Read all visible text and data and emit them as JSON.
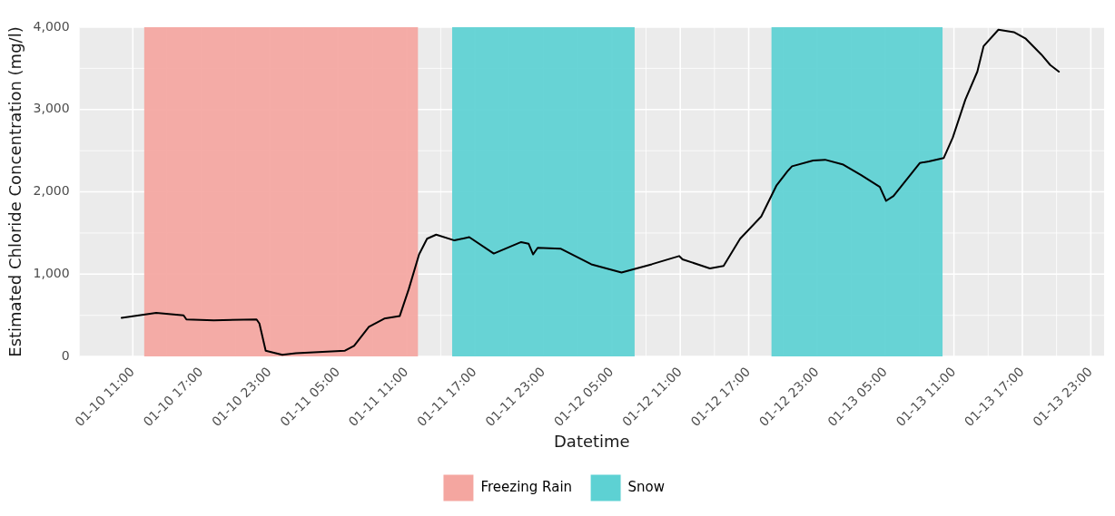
{
  "chart_data": {
    "type": "line",
    "xlabel": "Datetime",
    "ylabel": "Estimated Chloride Concentration (mg/l)",
    "x": [
      "--01-10T10:01",
      "--01-10T13:03",
      "--01-10T15:27",
      "--01-10T15:42",
      "--01-10T18:06",
      "--01-10T21:51",
      "--01-10T22:06",
      "--01-10T22:39",
      "--01-11T00:06",
      "--01-11T01:18",
      "--01-11T05:36",
      "--01-11T06:24",
      "--01-11T07:42",
      "--01-11T09:03",
      "--01-11T10:24",
      "--01-11T11:12",
      "--01-11T12:06",
      "--01-11T12:48",
      "--01-11T13:36",
      "--01-11T15:12",
      "--01-11T16:30",
      "--01-11T18:39",
      "--01-11T21:03",
      "--01-11T21:42",
      "--01-11T22:06",
      "--01-11T22:30",
      "--01-12T00:30",
      "--01-12T03:12",
      "--01-12T05:51",
      "--01-12T08:30",
      "--01-12T10:54",
      "--01-12T11:12",
      "--01-12T13:36",
      "--01-12T14:48",
      "--01-12T16:15",
      "--01-12T18:06",
      "--01-12T19:27",
      "--01-12T20:24",
      "--01-12T20:48",
      "--01-12T22:39",
      "--01-12T23:42",
      "--01-13T01:18",
      "--01-13T02:54",
      "--01-13T04:30",
      "--01-13T05:03",
      "--01-13T05:42",
      "--01-13T08:00",
      "--01-13T08:48",
      "--01-13T10:06",
      "--01-13T10:54",
      "--01-13T12:00",
      "--01-13T13:03",
      "--01-13T13:36",
      "--01-13T14:54",
      "--01-13T16:15",
      "--01-13T17:18",
      "--01-13T18:39",
      "--01-13T19:27",
      "--01-13T20:12"
    ],
    "series": [
      {
        "color": "#000000",
        "values": [
          470,
          530,
          500,
          450,
          440,
          450,
          400,
          70,
          20,
          40,
          70,
          130,
          360,
          460,
          490,
          820,
          1240,
          1430,
          1480,
          1410,
          1450,
          1250,
          1390,
          1370,
          1240,
          1320,
          1310,
          1120,
          1020,
          1120,
          1220,
          1180,
          1070,
          1100,
          1430,
          1700,
          2080,
          2250,
          2310,
          2380,
          2390,
          2330,
          2200,
          2060,
          1890,
          1950,
          2350,
          2370,
          2410,
          2660,
          3120,
          3460,
          3770,
          3970,
          3940,
          3860,
          3670,
          3540,
          3460
        ]
      }
    ],
    "bands": [
      {
        "axis": "x",
        "from": "--01-10T12:00",
        "to": "--01-11T12:00",
        "label": "Freezing Rain",
        "color": "#f4a6a0"
      },
      {
        "axis": "x",
        "from": "--01-11T15:00",
        "to": "--01-12T07:00",
        "label": "Snow",
        "color": "#5dd1d3"
      },
      {
        "axis": "x",
        "from": "--01-12T19:00",
        "to": "--01-13T10:00",
        "color": "#5dd1d3"
      }
    ],
    "xlim": [
      "--01-10T06:20",
      "--01-14T00:10"
    ],
    "xticks": [
      {
        "value": "--01-10T11:00",
        "label": "01-10 11:00"
      },
      {
        "value": "--01-10T17:00",
        "label": "01-10 17:00"
      },
      {
        "value": "--01-10T23:00",
        "label": "01-10 23:00"
      },
      {
        "value": "--01-11T05:00",
        "label": "01-11 05:00"
      },
      {
        "value": "--01-11T11:00",
        "label": "01-11 11:00"
      },
      {
        "value": "--01-11T17:00",
        "label": "01-11 17:00"
      },
      {
        "value": "--01-11T23:00",
        "label": "01-11 23:00"
      },
      {
        "value": "--01-12T05:00",
        "label": "01-12 05:00"
      },
      {
        "value": "--01-12T11:00",
        "label": "01-12 11:00"
      },
      {
        "value": "--01-12T17:00",
        "label": "01-12 17:00"
      },
      {
        "value": "--01-12T23:00",
        "label": "01-12 23:00"
      },
      {
        "value": "--01-13T05:00",
        "label": "01-13 05:00"
      },
      {
        "value": "--01-13T11:00",
        "label": "01-13 11:00"
      },
      {
        "value": "--01-13T17:00",
        "label": "01-13 17:00"
      },
      {
        "value": "--01-13T23:00",
        "label": "01-13 23:00"
      }
    ],
    "ylim": [
      0,
      4000
    ],
    "yticks": [
      {
        "value": 0,
        "label": "0"
      },
      {
        "value": 1000,
        "label": "1,000"
      },
      {
        "value": 2000,
        "label": "2,000"
      },
      {
        "value": 3000,
        "label": "3,000"
      },
      {
        "value": 4000,
        "label": "4,000"
      }
    ],
    "grid": true,
    "legend": "bottom",
    "marker": "none",
    "line_style": "solid"
  }
}
